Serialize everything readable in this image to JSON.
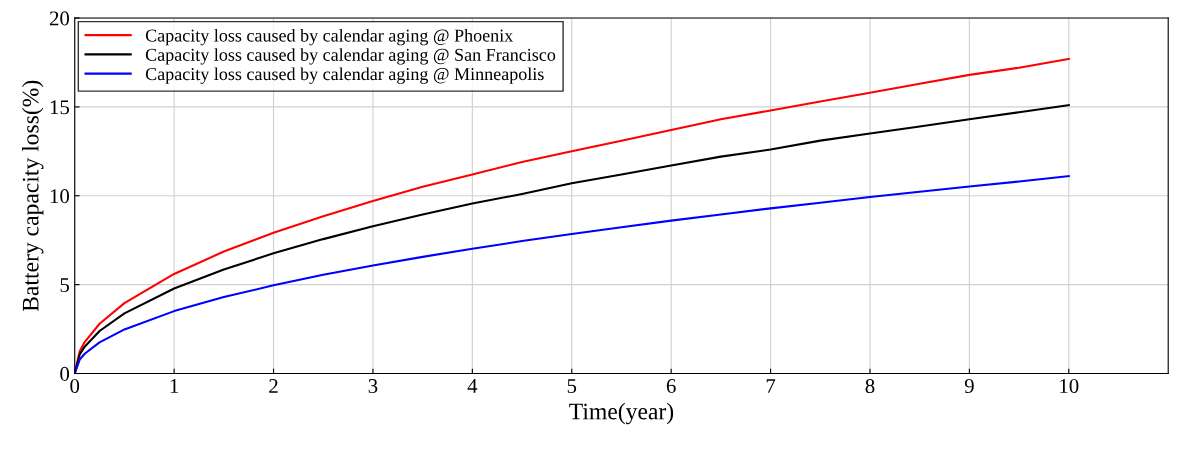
{
  "chart_data": {
    "type": "line",
    "xlabel": "Time(year)",
    "ylabel": "Battery capacity loss(%)",
    "x": [
      0,
      0.05,
      0.1,
      0.25,
      0.5,
      1,
      1.5,
      2,
      2.5,
      3,
      3.5,
      4,
      4.5,
      5,
      5.5,
      6,
      6.5,
      7,
      7.5,
      8,
      8.5,
      9,
      9.5,
      10
    ],
    "series": [
      {
        "name": "Capacity loss caused by calendar aging @ Phoenix",
        "color": "#ff0000",
        "values": [
          0,
          1.25,
          1.77,
          2.8,
          3.96,
          5.6,
          6.86,
          7.92,
          8.85,
          9.7,
          10.5,
          11.2,
          11.9,
          12.5,
          13.1,
          13.7,
          14.3,
          14.8,
          15.3,
          15.8,
          16.3,
          16.8,
          17.2,
          17.7
        ]
      },
      {
        "name": "Capacity loss caused by calendar aging @ San Francisco",
        "color": "#000000",
        "values": [
          0,
          1.07,
          1.51,
          2.39,
          3.38,
          4.78,
          5.85,
          6.76,
          7.56,
          8.28,
          8.94,
          9.56,
          10.1,
          10.7,
          11.2,
          11.7,
          12.2,
          12.6,
          13.1,
          13.5,
          13.9,
          14.3,
          14.7,
          15.1
        ]
      },
      {
        "name": "Capacity loss caused by calendar aging @ Minneapolis",
        "color": "#0000ff",
        "values": [
          0,
          0.78,
          1.11,
          1.75,
          2.48,
          3.51,
          4.3,
          4.96,
          5.55,
          6.08,
          6.56,
          7.02,
          7.45,
          7.85,
          8.23,
          8.6,
          8.95,
          9.29,
          9.61,
          9.93,
          10.23,
          10.52,
          10.8,
          11.1
        ]
      }
    ],
    "xlim": [
      0,
      11
    ],
    "xticks": [
      0,
      1,
      2,
      3,
      4,
      5,
      6,
      7,
      8,
      9,
      10
    ],
    "ylim": [
      0,
      20
    ],
    "yticks": [
      0,
      5,
      10,
      15,
      20
    ],
    "grid": true,
    "legend": "top left",
    "line_style": "solid"
  }
}
